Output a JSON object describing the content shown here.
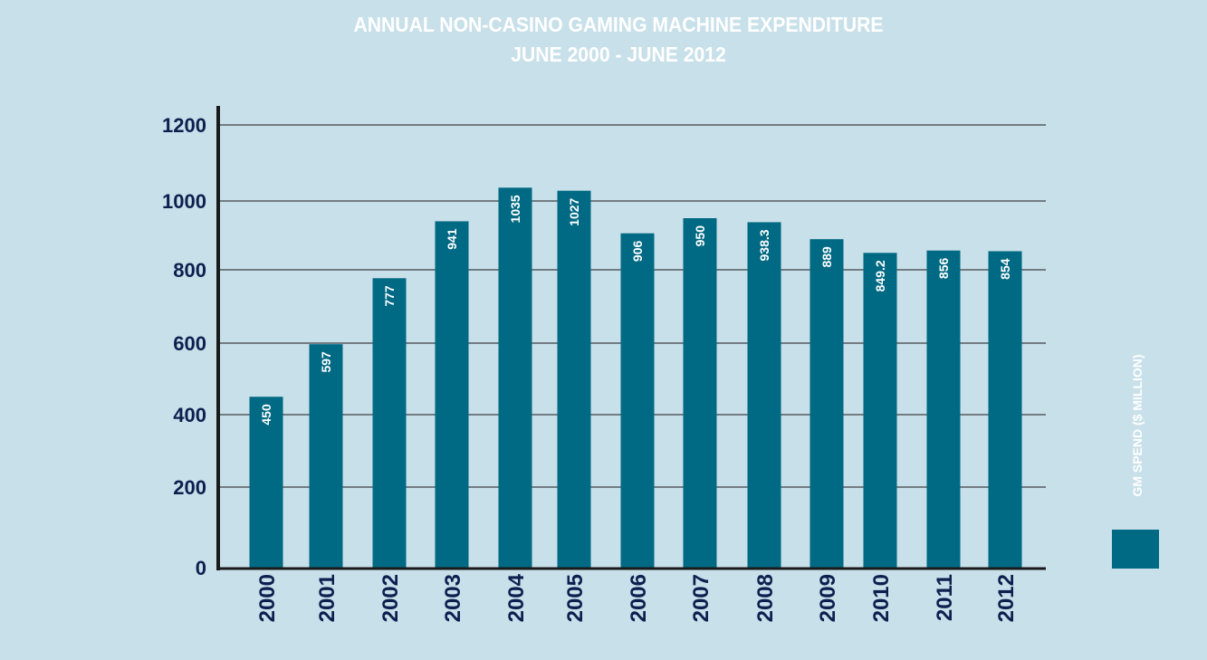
{
  "chart_data": {
    "type": "bar",
    "title": "ANNUAL NON-CASINO GAMING MACHINE EXPENDITURE",
    "subtitle": "JUNE 2000 - JUNE 2012",
    "categories": [
      "2000",
      "2001",
      "2002",
      "2003",
      "2004",
      "2005",
      "2006",
      "2007",
      "2008",
      "2009",
      "2010",
      "2011",
      "2012"
    ],
    "series": [
      {
        "name": "GM SPEND ($ MILLION)",
        "values": [
          450,
          597,
          777,
          941,
          1035,
          1027,
          906,
          950,
          938.3,
          889,
          849.2,
          856,
          854
        ],
        "labels": [
          "450",
          "597",
          "777",
          "941",
          "1035",
          "1027",
          "906",
          "950",
          "938.3",
          "889",
          "849.2",
          "856",
          "854"
        ]
      }
    ],
    "ylim": [
      0,
      1200
    ],
    "yticks": [
      "0",
      "200",
      "400",
      "600",
      "800",
      "1000",
      "1200"
    ],
    "grid": true,
    "legend_placement": "right",
    "colors": {
      "bar": "#006983",
      "background": "#c8e0e9",
      "axis_text": "#0d1f4f",
      "grid": "#1a1a1a"
    }
  }
}
